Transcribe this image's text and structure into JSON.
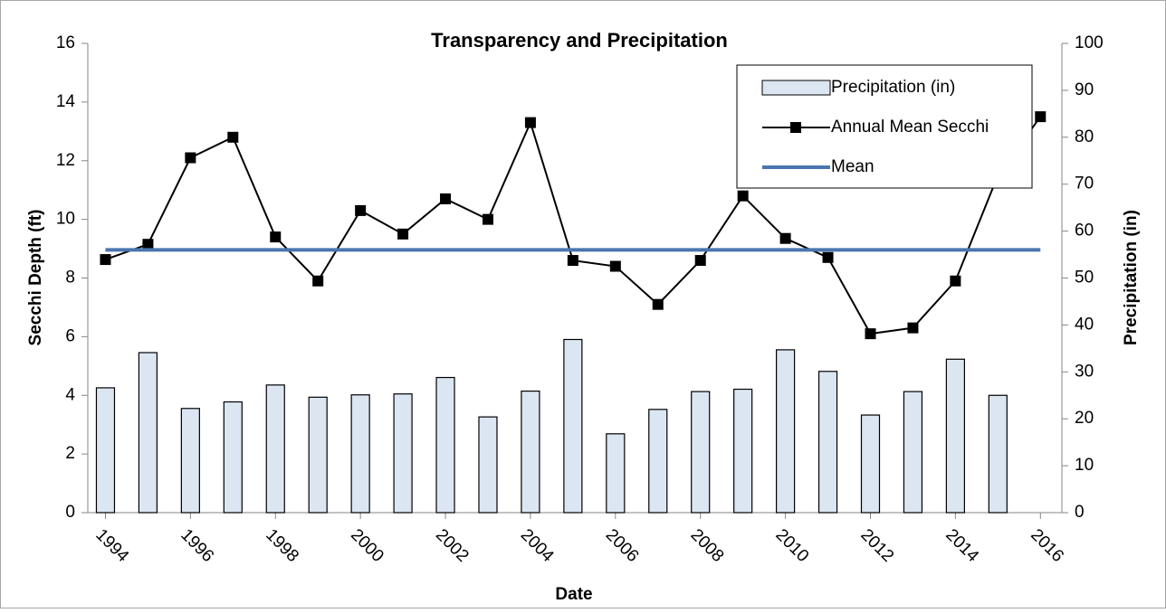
{
  "chart_data": {
    "type": "combo",
    "title": "Transparency and Precipitation",
    "x_label": "Date",
    "y_label": "Secchi Depth (ft)",
    "y2_label": "Precipitation (in)",
    "categories": [
      "1994",
      null,
      "1996",
      null,
      "1998",
      null,
      "2000",
      null,
      "2002",
      null,
      "2004",
      null,
      "2006",
      null,
      "2008",
      null,
      "2010",
      null,
      "2012",
      null,
      "2014",
      null,
      "2016"
    ],
    "ylim": [
      0,
      16
    ],
    "yticks": [
      0,
      2,
      4,
      6,
      8,
      10,
      12,
      14,
      16
    ],
    "y2lim": [
      0,
      100
    ],
    "y2ticks": [
      0,
      10,
      20,
      30,
      40,
      50,
      60,
      70,
      80,
      90,
      100
    ],
    "legend": "top-right",
    "series": [
      {
        "name": "Precipitation (in)",
        "type": "bar",
        "axis": "y2",
        "color": "#dce6f2",
        "values": [
          26.6,
          34.1,
          22.2,
          23.6,
          27.2,
          24.6,
          25.1,
          25.3,
          28.8,
          20.4,
          25.9,
          36.9,
          16.8,
          22,
          25.8,
          26.3,
          34.7,
          30.1,
          20.8,
          25.8,
          32.7,
          25,
          null
        ]
      },
      {
        "name": "Annual Mean Secchi",
        "type": "line",
        "marker": "square",
        "color": "#000000",
        "values": [
          8.63,
          9.15,
          12.1,
          12.8,
          9.4,
          7.9,
          10.3,
          9.5,
          10.7,
          10.0,
          13.3,
          8.6,
          8.4,
          7.1,
          8.6,
          10.8,
          9.35,
          8.7,
          6.1,
          6.3,
          7.9,
          11.5,
          13.5
        ]
      },
      {
        "name": "Mean",
        "type": "line",
        "color": "#4a76b0",
        "values": [
          8.96,
          8.96,
          8.96,
          8.96,
          8.96,
          8.96,
          8.96,
          8.96,
          8.96,
          8.96,
          8.96,
          8.96,
          8.96,
          8.96,
          8.96,
          8.96,
          8.96,
          8.96,
          8.96,
          8.96,
          8.96,
          8.96,
          8.96
        ]
      }
    ]
  }
}
